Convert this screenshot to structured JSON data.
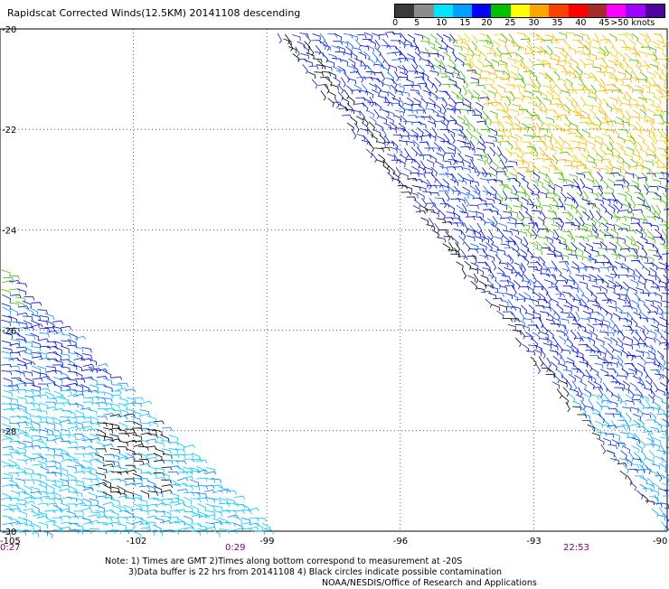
{
  "title": "Rapidscat Corrected Winds(12.5KM) 20141108 descending",
  "legend": {
    "labels": [
      "0",
      "5",
      "10",
      "15",
      "20",
      "25",
      "30",
      "35",
      "40",
      "45",
      ">50 knots"
    ],
    "colors": [
      "#3a3a3a",
      "#8c8c8c",
      "#00e5ff",
      "#00a0ff",
      "#0000ff",
      "#00c000",
      "#ffff00",
      "#ffa500",
      "#ff4000",
      "#ff0000",
      "#a52a2a",
      "#ff00ff",
      "#a000ff",
      "#5000a0"
    ]
  },
  "map": {
    "lat_labels": [
      "-20",
      "-22",
      "-24",
      "-26",
      "-28",
      "-30"
    ],
    "lon_labels": [
      "-105",
      "-102",
      "-99",
      "-96",
      "-93",
      "-90"
    ],
    "time_labels": [
      "0:27",
      "0:29",
      "22:53"
    ]
  },
  "notes": {
    "line1": "Note: 1) Times are GMT 2)Times along bottom correspond to measurement at -20S",
    "line2": "3)Data buffer is 22 hrs from 20141108 4) Black circles indicate possible contamination",
    "line3": "NOAA/NESDIS/Office of Research and Applications"
  }
}
